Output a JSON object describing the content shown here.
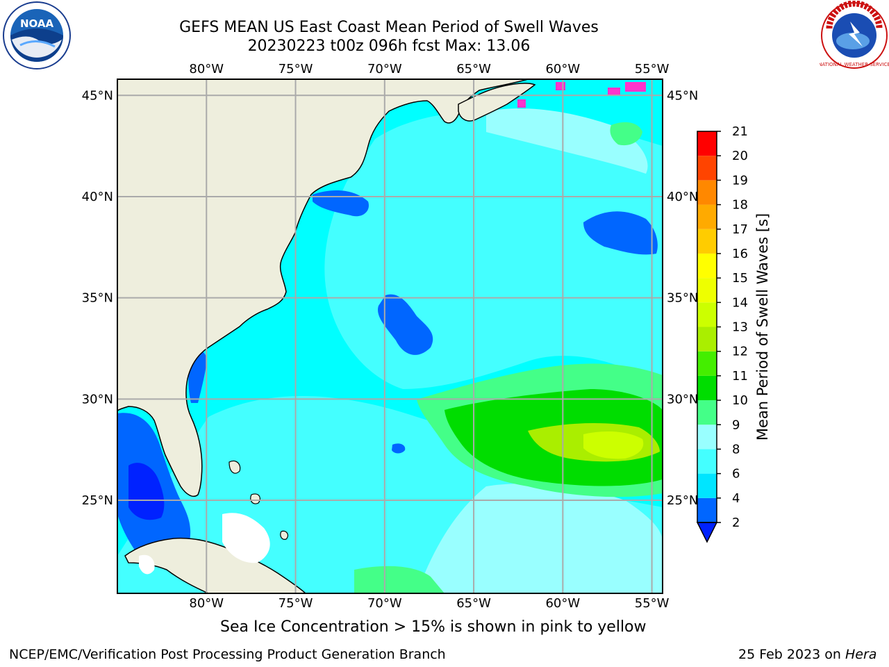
{
  "title": {
    "line1": "GEFS MEAN US East Coast Mean Period of Swell Waves",
    "line2": "20230223 t00z 096h fcst   Max: 13.06"
  },
  "map": {
    "lon_ticks": [
      -80,
      -75,
      -70,
      -65,
      -60,
      -55
    ],
    "lon_labels": [
      "80°W",
      "75°W",
      "70°W",
      "65°W",
      "60°W",
      "55°W"
    ],
    "lat_ticks": [
      45,
      40,
      35,
      30,
      25
    ],
    "lat_labels": [
      "45°N",
      "40°N",
      "35°N",
      "30°N",
      "25°N"
    ],
    "lon_range": [
      -85,
      -54.4
    ],
    "lat_range": [
      20.4,
      45.8
    ],
    "ocean_color": "#00ffff",
    "land_color": "#eeeedd",
    "grid_color": "#aaaaaa"
  },
  "colorbar": {
    "label": "Mean Period of Swell Waves [s]",
    "levels": [
      2,
      4,
      6,
      8,
      9,
      10,
      11,
      12,
      13,
      14,
      15,
      16,
      17,
      18,
      19,
      20,
      21
    ],
    "colors": [
      "#0066ff",
      "#00e5ff",
      "#44ffff",
      "#99ffff",
      "#44ff88",
      "#00dd00",
      "#44ee00",
      "#aaee00",
      "#ccff00",
      "#eeff00",
      "#ffff00",
      "#ffcc00",
      "#ffaa00",
      "#ff8800",
      "#ff4400",
      "#ff0000"
    ],
    "extend_color": "#0022ff"
  },
  "caption": "Sea Ice Concentration > 15% is shown in pink to yellow",
  "footer": {
    "left": "NCEP/EMC/Verification Post Processing Product Generation Branch",
    "date": "25 Feb 2023 on ",
    "machine": "Hera"
  },
  "logos": {
    "noaa_text": "NOAA",
    "nws_text": "NATIONAL WEATHER SERVICE"
  }
}
